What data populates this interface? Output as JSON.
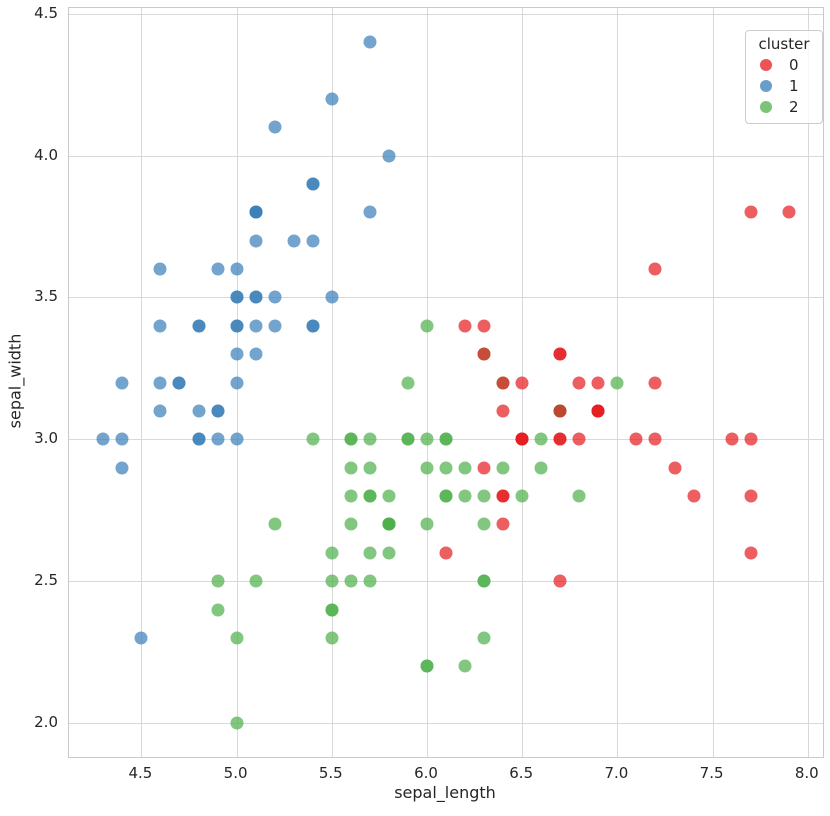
{
  "chart_data": {
    "type": "scatter",
    "title": "",
    "xlabel": "sepal_length",
    "ylabel": "sepal_width",
    "xlim": [
      4.12,
      8.08
    ],
    "ylim": [
      1.88,
      4.52
    ],
    "xticks": [
      4.5,
      5.0,
      5.5,
      6.0,
      6.5,
      7.0,
      7.5,
      8.0
    ],
    "yticks": [
      2.0,
      2.5,
      3.0,
      3.5,
      4.0,
      4.5
    ],
    "grid": true,
    "style": {
      "grid_color": "#d9d9d9",
      "spine_color": "#c9c9c9",
      "text_color": "#262626",
      "background": "#ffffff",
      "marker_alpha": 0.7,
      "marker_diameter_px": 13
    },
    "legend": {
      "title": "cluster",
      "position": "upper right",
      "entries": [
        {
          "label": "0",
          "color": "#e41a1c"
        },
        {
          "label": "1",
          "color": "#377eb8"
        },
        {
          "label": "2",
          "color": "#4daf4a"
        }
      ]
    },
    "series": [
      {
        "name": "1",
        "color": "#377eb8",
        "points": [
          [
            5.1,
            3.5
          ],
          [
            4.9,
            3.0
          ],
          [
            4.7,
            3.2
          ],
          [
            4.6,
            3.1
          ],
          [
            5.0,
            3.6
          ],
          [
            5.4,
            3.9
          ],
          [
            4.6,
            3.4
          ],
          [
            5.0,
            3.4
          ],
          [
            4.4,
            2.9
          ],
          [
            4.9,
            3.1
          ],
          [
            5.4,
            3.7
          ],
          [
            4.8,
            3.4
          ],
          [
            4.8,
            3.0
          ],
          [
            4.3,
            3.0
          ],
          [
            5.8,
            4.0
          ],
          [
            5.7,
            4.4
          ],
          [
            5.4,
            3.9
          ],
          [
            5.1,
            3.5
          ],
          [
            5.7,
            3.8
          ],
          [
            5.1,
            3.8
          ],
          [
            5.4,
            3.4
          ],
          [
            5.1,
            3.7
          ],
          [
            4.6,
            3.6
          ],
          [
            5.1,
            3.3
          ],
          [
            4.8,
            3.4
          ],
          [
            5.0,
            3.0
          ],
          [
            5.0,
            3.4
          ],
          [
            5.2,
            3.5
          ],
          [
            5.2,
            3.4
          ],
          [
            4.7,
            3.2
          ],
          [
            4.8,
            3.1
          ],
          [
            5.4,
            3.4
          ],
          [
            5.2,
            4.1
          ],
          [
            5.5,
            4.2
          ],
          [
            4.9,
            3.1
          ],
          [
            5.0,
            3.2
          ],
          [
            5.5,
            3.5
          ],
          [
            4.9,
            3.6
          ],
          [
            4.4,
            3.0
          ],
          [
            5.1,
            3.4
          ],
          [
            5.0,
            3.5
          ],
          [
            4.5,
            2.3
          ],
          [
            4.4,
            3.2
          ],
          [
            5.0,
            3.5
          ],
          [
            5.1,
            3.8
          ],
          [
            4.8,
            3.0
          ],
          [
            5.1,
            3.8
          ],
          [
            4.6,
            3.2
          ],
          [
            5.3,
            3.7
          ],
          [
            5.0,
            3.3
          ]
        ]
      },
      {
        "name": "2",
        "color": "#4daf4a",
        "points": [
          [
            7.0,
            3.2
          ],
          [
            6.4,
            3.2
          ],
          [
            5.5,
            2.3
          ],
          [
            6.5,
            2.8
          ],
          [
            5.7,
            2.8
          ],
          [
            6.3,
            3.3
          ],
          [
            4.9,
            2.4
          ],
          [
            6.6,
            2.9
          ],
          [
            5.2,
            2.7
          ],
          [
            5.0,
            2.0
          ],
          [
            5.9,
            3.0
          ],
          [
            6.0,
            2.2
          ],
          [
            6.1,
            2.9
          ],
          [
            5.6,
            2.9
          ],
          [
            6.7,
            3.1
          ],
          [
            5.6,
            3.0
          ],
          [
            5.8,
            2.7
          ],
          [
            6.2,
            2.2
          ],
          [
            5.6,
            2.5
          ],
          [
            5.9,
            3.2
          ],
          [
            6.1,
            2.8
          ],
          [
            6.3,
            2.5
          ],
          [
            6.1,
            2.8
          ],
          [
            6.4,
            2.9
          ],
          [
            6.6,
            3.0
          ],
          [
            6.8,
            2.8
          ],
          [
            6.0,
            2.9
          ],
          [
            5.7,
            2.6
          ],
          [
            5.5,
            2.4
          ],
          [
            5.5,
            2.4
          ],
          [
            5.8,
            2.7
          ],
          [
            6.0,
            2.7
          ],
          [
            5.4,
            3.0
          ],
          [
            6.0,
            3.4
          ],
          [
            6.7,
            3.1
          ],
          [
            6.3,
            2.3
          ],
          [
            5.6,
            3.0
          ],
          [
            5.5,
            2.5
          ],
          [
            5.5,
            2.6
          ],
          [
            6.1,
            3.0
          ],
          [
            5.8,
            2.6
          ],
          [
            5.0,
            2.3
          ],
          [
            5.6,
            2.7
          ],
          [
            5.7,
            3.0
          ],
          [
            5.7,
            2.9
          ],
          [
            6.2,
            2.9
          ],
          [
            5.1,
            2.5
          ],
          [
            5.7,
            2.8
          ],
          [
            5.8,
            2.7
          ],
          [
            4.9,
            2.5
          ],
          [
            5.7,
            2.5
          ],
          [
            5.8,
            2.8
          ],
          [
            6.0,
            2.2
          ],
          [
            5.6,
            2.8
          ],
          [
            6.3,
            2.7
          ],
          [
            6.2,
            2.8
          ],
          [
            6.1,
            3.0
          ],
          [
            6.3,
            2.8
          ],
          [
            6.0,
            3.0
          ],
          [
            5.8,
            2.7
          ],
          [
            6.3,
            2.5
          ],
          [
            5.9,
            3.0
          ]
        ]
      },
      {
        "name": "0",
        "color": "#e41a1c",
        "points": [
          [
            6.9,
            3.1
          ],
          [
            6.7,
            3.0
          ],
          [
            6.3,
            3.3
          ],
          [
            7.1,
            3.0
          ],
          [
            6.3,
            2.9
          ],
          [
            6.5,
            3.0
          ],
          [
            7.6,
            3.0
          ],
          [
            7.3,
            2.9
          ],
          [
            6.7,
            2.5
          ],
          [
            7.2,
            3.6
          ],
          [
            6.5,
            3.2
          ],
          [
            6.4,
            2.7
          ],
          [
            6.8,
            3.0
          ],
          [
            6.4,
            3.2
          ],
          [
            6.5,
            3.0
          ],
          [
            7.7,
            3.8
          ],
          [
            7.7,
            2.6
          ],
          [
            6.9,
            3.2
          ],
          [
            7.7,
            2.8
          ],
          [
            6.7,
            3.3
          ],
          [
            7.2,
            3.2
          ],
          [
            6.4,
            2.8
          ],
          [
            7.2,
            3.0
          ],
          [
            7.4,
            2.8
          ],
          [
            7.9,
            3.8
          ],
          [
            6.4,
            2.8
          ],
          [
            6.1,
            2.6
          ],
          [
            7.7,
            3.0
          ],
          [
            6.3,
            3.4
          ],
          [
            6.4,
            3.1
          ],
          [
            6.9,
            3.1
          ],
          [
            6.7,
            3.1
          ],
          [
            6.9,
            3.1
          ],
          [
            6.8,
            3.2
          ],
          [
            6.7,
            3.3
          ],
          [
            6.7,
            3.0
          ],
          [
            6.5,
            3.0
          ],
          [
            6.2,
            3.4
          ]
        ]
      }
    ]
  }
}
